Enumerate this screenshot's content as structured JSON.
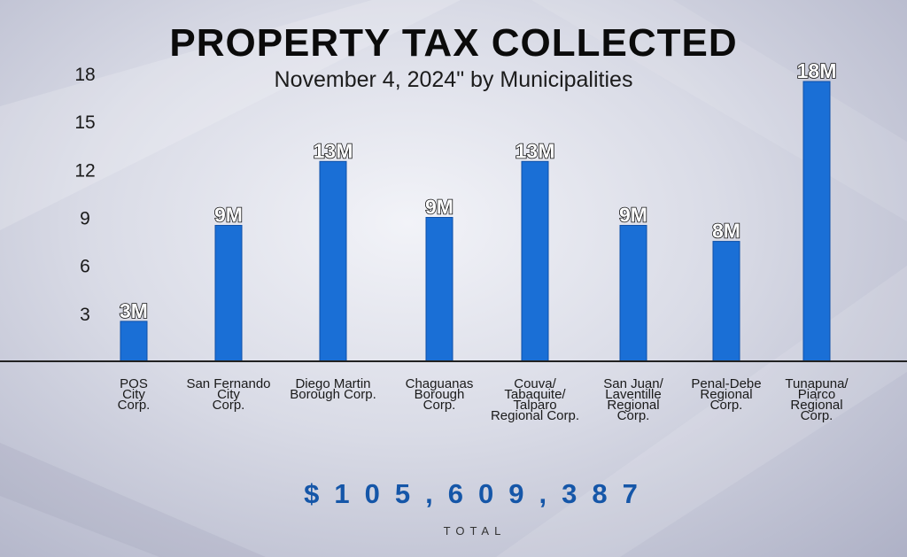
{
  "title": "PROPERTY TAX COLLECTED",
  "subtitle": "November 4, 2024\" by Municipalities",
  "total": {
    "value": "$105,609,387",
    "label": "TOTAL"
  },
  "colors": {
    "bar": "#1a6fd6",
    "bar_edge": "#0d4fa8",
    "label": "#ffffff",
    "axis": "#222222",
    "total": "#1556a8"
  },
  "chart_data": {
    "type": "bar",
    "title": "PROPERTY TAX COLLECTED",
    "subtitle": "November 4, 2024\" by Municipalities",
    "categories": [
      [
        "POS",
        "City",
        "Corp."
      ],
      [
        "San Fernando",
        "City",
        "Corp."
      ],
      [
        "Diego Martin",
        "Borough Corp."
      ],
      [
        "Chaguanas",
        "Borough",
        "Corp."
      ],
      [
        "Couva/",
        "Tabaquite/",
        "Talparo",
        "Regional Corp."
      ],
      [
        "San Juan/",
        "Laventille",
        "Regional",
        "Corp."
      ],
      [
        "Penal-Debe",
        "Regional",
        "Corp."
      ],
      [
        "Tunapuna/",
        "Piarco",
        "Regional",
        "Corp."
      ]
    ],
    "values": [
      2.5,
      8.5,
      12.5,
      9,
      12.5,
      8.5,
      7.5,
      17.5
    ],
    "data_labels": [
      "3M",
      "9M",
      "13M",
      "9M",
      "13M",
      "9M",
      "8M",
      "18M"
    ],
    "yticks": [
      3,
      6,
      9,
      12,
      15,
      18
    ],
    "ylim": [
      0,
      18
    ],
    "grid": false,
    "legend": "none"
  }
}
